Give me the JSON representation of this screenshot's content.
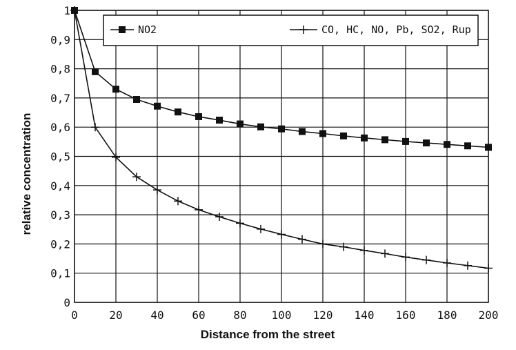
{
  "chart_data": {
    "type": "line",
    "title": "",
    "xlabel": "Distance from the street",
    "ylabel": "relative concentration",
    "xlim": [
      0,
      200
    ],
    "ylim": [
      0,
      1
    ],
    "grid": true,
    "legend_position": "top",
    "x_ticks": [
      "0",
      "20",
      "40",
      "60",
      "80",
      "100",
      "120",
      "140",
      "160",
      "180",
      "200"
    ],
    "y_ticks": [
      "0",
      "0,1",
      "0,2",
      "0,3",
      "0,4",
      "0,5",
      "0,6",
      "0,7",
      "0,8",
      "0,9",
      "1"
    ],
    "x": [
      0,
      10,
      20,
      30,
      40,
      50,
      60,
      70,
      80,
      90,
      100,
      110,
      120,
      130,
      140,
      150,
      160,
      170,
      180,
      190,
      200
    ],
    "series": [
      {
        "name": "NO2",
        "marker": "square",
        "values": [
          1.0,
          0.79,
          0.73,
          0.695,
          0.672,
          0.652,
          0.636,
          0.624,
          0.611,
          0.601,
          0.594,
          0.585,
          0.578,
          0.57,
          0.563,
          0.557,
          0.551,
          0.546,
          0.541,
          0.536,
          0.531
        ]
      },
      {
        "name": "CO, HC, NO, Pb, SO2, Rup",
        "marker": "plus",
        "values": [
          1.0,
          0.6,
          0.497,
          0.43,
          0.385,
          0.347,
          0.317,
          0.293,
          0.271,
          0.251,
          0.233,
          0.216,
          0.2,
          0.19,
          0.178,
          0.167,
          0.155,
          0.145,
          0.135,
          0.126,
          0.117
        ]
      }
    ]
  }
}
